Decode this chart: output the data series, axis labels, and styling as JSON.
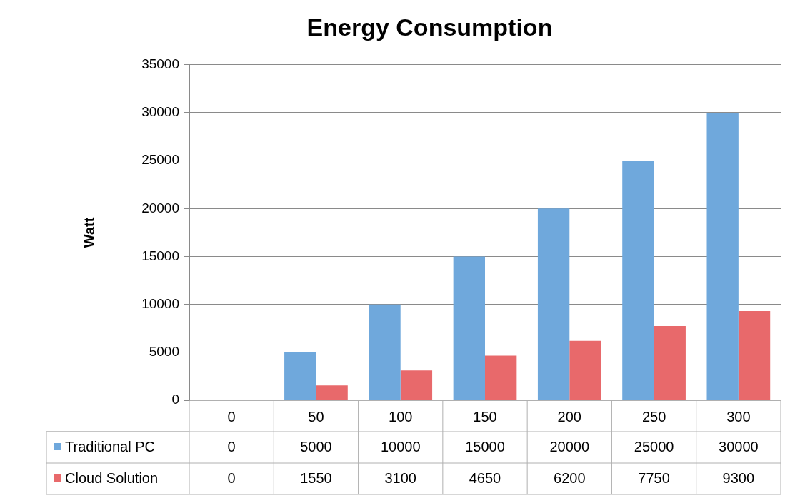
{
  "chart_data": {
    "type": "bar",
    "title": "Energy Consumption",
    "ylabel": "Watt",
    "categories": [
      "0",
      "50",
      "100",
      "150",
      "200",
      "250",
      "300"
    ],
    "series": [
      {
        "name": "Traditional PC",
        "color": "#6fa8dc",
        "values": [
          0,
          5000,
          10000,
          15000,
          20000,
          25000,
          30000
        ]
      },
      {
        "name": "Cloud Solution",
        "color": "#e8696b",
        "values": [
          0,
          1550,
          3100,
          4650,
          6200,
          7750,
          9300
        ]
      }
    ],
    "ylim": [
      0,
      35000
    ],
    "yticks": [
      0,
      5000,
      10000,
      15000,
      20000,
      25000,
      30000,
      35000
    ],
    "grid": "y",
    "legend": "bottom",
    "data_labels": true
  }
}
